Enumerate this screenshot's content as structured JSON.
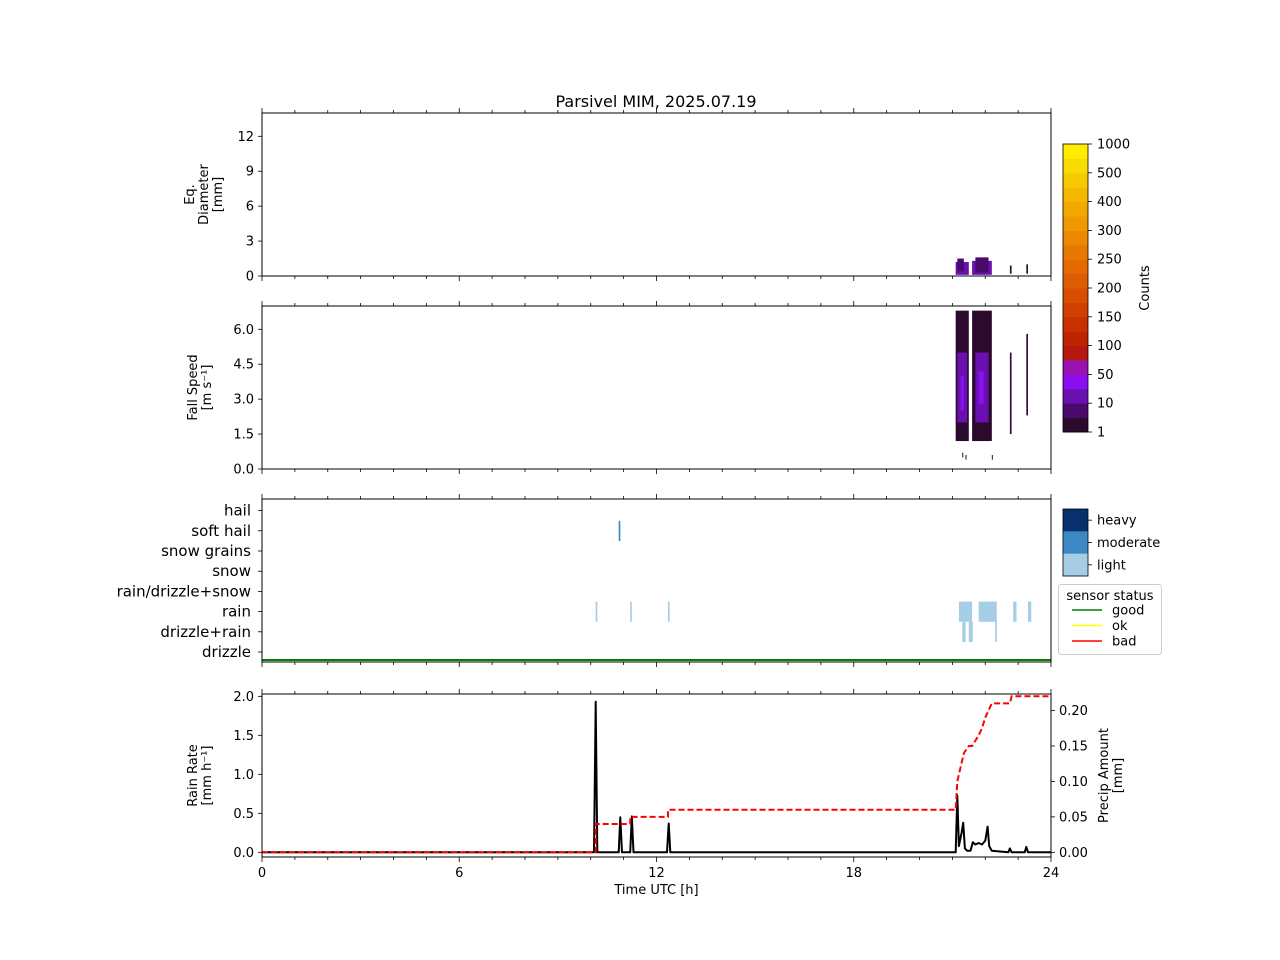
{
  "title": "Parsivel MIM, 2025.07.19",
  "colors": {
    "count_cmap": [
      "#2b0a2e",
      "#4a0a6b",
      "#6a0fb0",
      "#8a10f0",
      "#9a12b0",
      "#b21810",
      "#bf2400",
      "#c83000",
      "#d04000",
      "#d84e00",
      "#de5c00",
      "#e46a00",
      "#e87800",
      "#ec8800",
      "#f09800",
      "#f2a800",
      "#f4b800",
      "#f6c800",
      "#f8dc00",
      "#ffec00"
    ],
    "intensity": {
      "light": "#a6cde6",
      "moderate": "#3b88c4",
      "heavy": "#08306b"
    },
    "status": {
      "good": "#008000",
      "ok": "#ffff00",
      "bad": "#ff0000"
    },
    "rain_rate_line": "#000000",
    "precip_amount_line": "#ff0000"
  },
  "chart_data": [
    {
      "type": "heatmap",
      "name": "diameter",
      "ylabel": [
        "Eq.",
        "Diameter",
        "[mm]"
      ],
      "ylim": [
        0,
        14
      ],
      "yticks": [
        0,
        3,
        6,
        9,
        12
      ],
      "xlim": [
        0,
        24
      ],
      "cells": [
        {
          "t0": 21.1,
          "t1": 21.5,
          "d0": 0.1,
          "d1": 1.2,
          "level": 2
        },
        {
          "t0": 21.15,
          "t1": 21.35,
          "d0": 0.4,
          "d1": 1.5,
          "level": 1
        },
        {
          "t0": 21.6,
          "t1": 22.2,
          "d0": 0.1,
          "d1": 1.3,
          "level": 2
        },
        {
          "t0": 21.7,
          "t1": 22.1,
          "d0": 0.3,
          "d1": 1.6,
          "level": 1
        },
        {
          "t0": 22.75,
          "t1": 22.8,
          "d0": 0.2,
          "d1": 0.9,
          "level": 0
        },
        {
          "t0": 23.25,
          "t1": 23.3,
          "d0": 0.2,
          "d1": 1.0,
          "level": 0
        }
      ]
    },
    {
      "type": "heatmap",
      "name": "fall_speed",
      "ylabel": [
        "Fall Speed",
        "[m s⁻¹]"
      ],
      "ylim": [
        0,
        7
      ],
      "yticks": [
        0.0,
        1.5,
        3.0,
        4.5,
        6.0
      ],
      "xlim": [
        0,
        24
      ],
      "cells": [
        {
          "t0": 21.1,
          "t1": 21.5,
          "d0": 1.2,
          "d1": 6.8,
          "level": 0
        },
        {
          "t0": 21.15,
          "t1": 21.45,
          "d0": 2.0,
          "d1": 5.0,
          "level": 2
        },
        {
          "t0": 21.25,
          "t1": 21.35,
          "d0": 2.5,
          "d1": 4.0,
          "level": 3
        },
        {
          "t0": 21.6,
          "t1": 22.2,
          "d0": 1.2,
          "d1": 6.8,
          "level": 0
        },
        {
          "t0": 21.7,
          "t1": 22.1,
          "d0": 2.0,
          "d1": 5.0,
          "level": 2
        },
        {
          "t0": 21.8,
          "t1": 21.95,
          "d0": 2.8,
          "d1": 4.2,
          "level": 3
        },
        {
          "t0": 22.75,
          "t1": 22.8,
          "d0": 1.5,
          "d1": 5.0,
          "level": 0
        },
        {
          "t0": 23.25,
          "t1": 23.3,
          "d0": 2.3,
          "d1": 5.8,
          "level": 0
        },
        {
          "t0": 21.3,
          "t1": 21.32,
          "d0": 0.5,
          "d1": 0.7,
          "level": 0
        },
        {
          "t0": 21.4,
          "t1": 21.42,
          "d0": 0.4,
          "d1": 0.6,
          "level": 0
        },
        {
          "t0": 22.2,
          "t1": 22.22,
          "d0": 0.4,
          "d1": 0.6,
          "level": 0
        }
      ]
    },
    {
      "type": "heatmap",
      "name": "precip_type",
      "categories": [
        "drizzle",
        "drizzle+rain",
        "rain",
        "rain/drizzle+snow",
        "snow",
        "snow grains",
        "soft hail",
        "hail"
      ],
      "xlim": [
        0,
        24
      ],
      "legend_intensity": [
        "heavy",
        "moderate",
        "light"
      ],
      "legend_status_title": "sensor status",
      "legend_status": [
        "good",
        "ok",
        "bad"
      ],
      "events": [
        {
          "t0": 10.15,
          "t1": 10.2,
          "category": "rain",
          "intensity": "light"
        },
        {
          "t0": 10.85,
          "t1": 10.9,
          "category": "soft hail",
          "intensity": "moderate"
        },
        {
          "t0": 11.2,
          "t1": 11.25,
          "category": "rain",
          "intensity": "light"
        },
        {
          "t0": 12.35,
          "t1": 12.4,
          "category": "rain",
          "intensity": "light"
        },
        {
          "t0": 21.2,
          "t1": 21.6,
          "category": "rain",
          "intensity": "light"
        },
        {
          "t0": 21.8,
          "t1": 22.35,
          "category": "rain",
          "intensity": "light"
        },
        {
          "t0": 22.85,
          "t1": 22.95,
          "category": "rain",
          "intensity": "light"
        },
        {
          "t0": 23.3,
          "t1": 23.4,
          "category": "rain",
          "intensity": "light"
        },
        {
          "t0": 21.3,
          "t1": 21.4,
          "category": "drizzle+rain",
          "intensity": "light"
        },
        {
          "t0": 21.5,
          "t1": 21.62,
          "category": "drizzle+rain",
          "intensity": "light"
        },
        {
          "t0": 22.3,
          "t1": 22.35,
          "category": "drizzle+rain",
          "intensity": "light"
        }
      ],
      "status_series": {
        "name": "good",
        "t": [
          0,
          24
        ],
        "value": "good"
      }
    },
    {
      "type": "line",
      "name": "rain",
      "xlabel": "Time UTC [h]",
      "xlim": [
        0,
        24
      ],
      "xticks": [
        0,
        6,
        12,
        18,
        24
      ],
      "ylabel": [
        "Rain Rate",
        "[mm h⁻¹]"
      ],
      "ylim": [
        -0.06,
        2.03
      ],
      "yticks": [
        0.0,
        0.5,
        1.0,
        1.5,
        2.0
      ],
      "y2label": [
        "Precip Amount",
        "[mm]"
      ],
      "y2lim": [
        -0.0066,
        0.2233
      ],
      "y2ticks": [
        0.0,
        0.05,
        0.1,
        0.15,
        0.2
      ],
      "series": [
        {
          "role": "rain_rate",
          "x": [
            0,
            10.1,
            10.15,
            10.2,
            10.85,
            10.9,
            10.95,
            11.2,
            11.25,
            11.3,
            12.32,
            12.37,
            12.42,
            21.1,
            21.15,
            21.2,
            21.28,
            21.33,
            21.38,
            21.45,
            21.55,
            21.62,
            21.7,
            21.8,
            21.9,
            22.0,
            22.07,
            22.12,
            22.2,
            22.7,
            22.75,
            22.8,
            23.2,
            23.25,
            23.3,
            24
          ],
          "y": [
            0,
            0,
            1.93,
            0,
            0,
            0.45,
            0,
            0,
            0.46,
            0,
            0,
            0.37,
            0,
            0,
            0.73,
            0.08,
            0.25,
            0.38,
            0.05,
            0.02,
            0.02,
            0.13,
            0.1,
            0.12,
            0.1,
            0.15,
            0.33,
            0.08,
            0.02,
            0,
            0.05,
            0,
            0,
            0.07,
            0,
            0
          ]
        },
        {
          "role": "precip_amount",
          "x": [
            0,
            10.15,
            10.15,
            11.2,
            11.2,
            12.35,
            12.35,
            21.1,
            21.15,
            21.25,
            21.35,
            21.5,
            21.6,
            21.8,
            21.9,
            22.0,
            22.1,
            22.2,
            22.35,
            22.75,
            22.8,
            23.25,
            24
          ],
          "y": [
            0,
            0,
            0.04,
            0.04,
            0.05,
            0.05,
            0.06,
            0.06,
            0.1,
            0.12,
            0.14,
            0.15,
            0.15,
            0.165,
            0.175,
            0.19,
            0.2,
            0.21,
            0.21,
            0.21,
            0.22,
            0.22,
            0.22
          ]
        }
      ]
    },
    {
      "type": "heatmap",
      "name": "counts_colorbar",
      "label": "Counts",
      "ticks": [
        "1",
        "10",
        "50",
        "100",
        "150",
        "200",
        "250",
        "300",
        "400",
        "500",
        "1000"
      ]
    }
  ]
}
